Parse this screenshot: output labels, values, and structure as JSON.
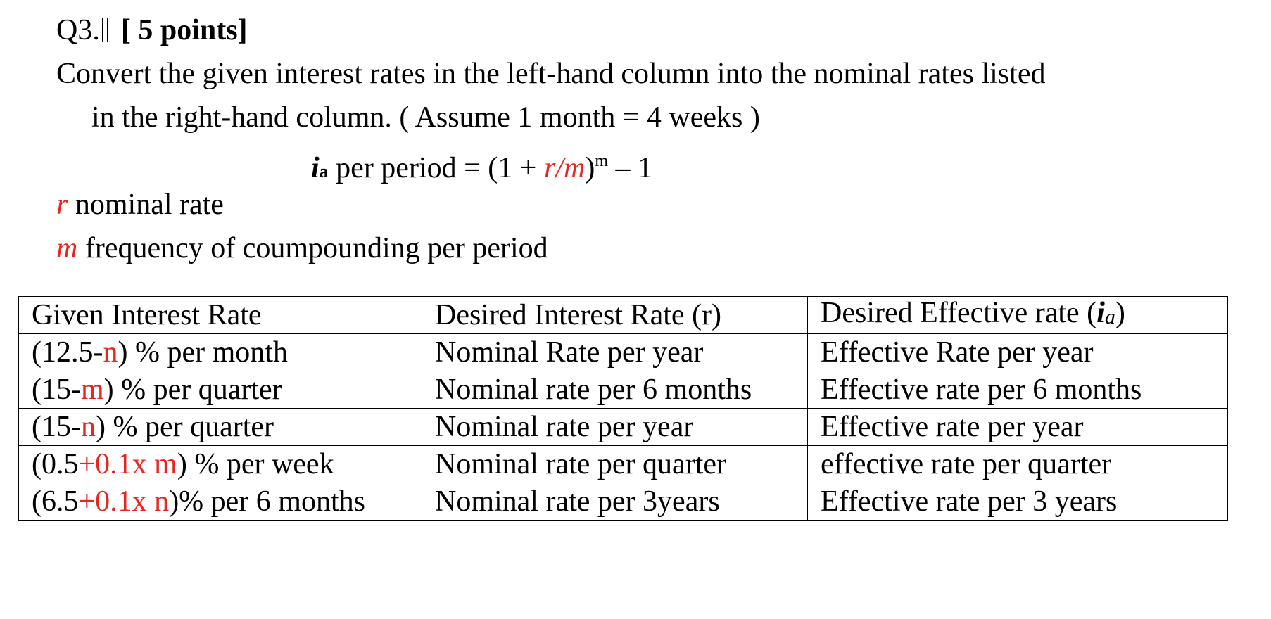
{
  "question": {
    "number": "Q3.",
    "points": "[ 5 points]",
    "instruction_line1": "Convert the given interest rates in the left-hand column into the nominal rates listed",
    "instruction_line2": "in the right-hand column. ( Assume 1 month = 4 weeks )"
  },
  "formula": {
    "lhs_symbol": "i",
    "lhs_sub": "a",
    "lhs_text": " per period = (1 + ",
    "ratio": "r/m",
    "close": ")",
    "exponent": "m",
    "tail": " – 1"
  },
  "definitions": [
    {
      "symbol": "r",
      "text": " nominal rate"
    },
    {
      "symbol": "m",
      "text": " frequency of coumpounding per period"
    }
  ],
  "table": {
    "headers": {
      "given": "Given Interest Rate",
      "desired_nominal": "Desired Interest Rate (r)",
      "desired_effective_prefix": "Desired Effective rate (",
      "desired_effective_symbol": "i",
      "desired_effective_sub": "a",
      "desired_effective_suffix": ")"
    },
    "rows": [
      {
        "given_prefix": "(12.5-",
        "given_var": "n",
        "given_suffix": ") % per month",
        "nominal": "Nominal Rate per year",
        "effective": "Effective Rate per year"
      },
      {
        "given_prefix": "(15-",
        "given_var": "m",
        "given_suffix": ") % per quarter",
        "nominal": "Nominal rate per 6 months",
        "effective": "Effective rate per 6 months"
      },
      {
        "given_prefix": "(15-",
        "given_var": "n",
        "given_suffix": ")  % per quarter",
        "nominal": "Nominal rate per year",
        "effective": "Effective rate per year"
      },
      {
        "given_prefix": "(0.5",
        "given_var": "+0.1x m",
        "given_suffix": ") %  per week",
        "nominal": "Nominal rate per quarter",
        "effective": "effective rate per quarter"
      },
      {
        "given_prefix": "(6.5",
        "given_var": "+0.1x n",
        "given_suffix": ")% per 6 months",
        "nominal": "Nominal rate per 3years",
        "effective": "Effective rate per 3 years"
      }
    ]
  },
  "colors": {
    "variable": "#e8261e",
    "text": "#000000",
    "background": "#ffffff"
  }
}
